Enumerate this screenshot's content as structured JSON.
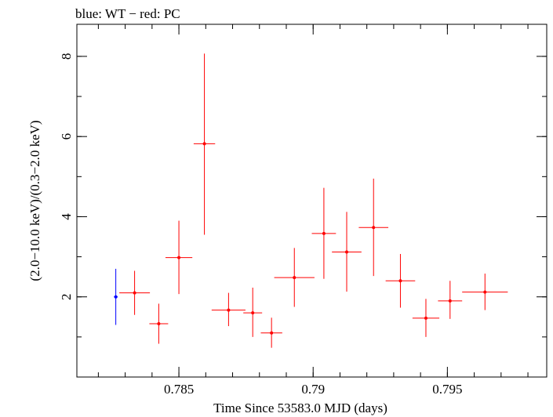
{
  "chart_data": {
    "type": "scatter",
    "title": "blue: WT − red: PC",
    "xlabel": "Time Since 53583.0 MJD (days)",
    "ylabel": "(2.0−10.0 keV)/(0.3−2.0 keV)",
    "xlim": [
      0.7812,
      0.7987
    ],
    "ylim": [
      0,
      8.8
    ],
    "x_ticks": [
      {
        "value": 0.785,
        "label": "0.785"
      },
      {
        "value": 0.79,
        "label": "0.79"
      },
      {
        "value": 0.795,
        "label": "0.795"
      }
    ],
    "x_minor_step": 0.001,
    "y_ticks": [
      {
        "value": 2,
        "label": "2"
      },
      {
        "value": 4,
        "label": "4"
      },
      {
        "value": 6,
        "label": "6"
      },
      {
        "value": 8,
        "label": "8"
      }
    ],
    "y_minor_step": 1,
    "grid": false,
    "series": [
      {
        "color": "#0000ff",
        "points": [
          {
            "x": 0.78265,
            "y": 2.0,
            "xerr": 7e-05,
            "ylo": 1.3,
            "yhi": 2.7
          }
        ]
      },
      {
        "color": "#ff0000",
        "points": [
          {
            "x": 0.78335,
            "y": 2.1,
            "xerr": 0.00057,
            "ylo": 1.55,
            "yhi": 2.65
          },
          {
            "x": 0.78425,
            "y": 1.33,
            "xerr": 0.00035,
            "ylo": 0.83,
            "yhi": 1.83
          },
          {
            "x": 0.785,
            "y": 2.98,
            "xerr": 0.0005,
            "ylo": 2.07,
            "yhi": 3.9
          },
          {
            "x": 0.78595,
            "y": 5.82,
            "xerr": 0.0004,
            "ylo": 3.55,
            "yhi": 8.07
          },
          {
            "x": 0.78685,
            "y": 1.67,
            "xerr": 0.00063,
            "ylo": 1.27,
            "yhi": 2.1
          },
          {
            "x": 0.78775,
            "y": 1.6,
            "xerr": 0.00035,
            "ylo": 1.0,
            "yhi": 2.23
          },
          {
            "x": 0.78845,
            "y": 1.1,
            "xerr": 0.0004,
            "ylo": 0.73,
            "yhi": 1.48
          },
          {
            "x": 0.7893,
            "y": 2.48,
            "xerr": 0.00075,
            "ylo": 1.75,
            "yhi": 3.22
          },
          {
            "x": 0.7904,
            "y": 3.58,
            "xerr": 0.00045,
            "ylo": 2.45,
            "yhi": 4.72
          },
          {
            "x": 0.79125,
            "y": 3.12,
            "xerr": 0.00055,
            "ylo": 2.13,
            "yhi": 4.12
          },
          {
            "x": 0.79225,
            "y": 3.73,
            "xerr": 0.00055,
            "ylo": 2.52,
            "yhi": 4.95
          },
          {
            "x": 0.79325,
            "y": 2.4,
            "xerr": 0.00055,
            "ylo": 1.73,
            "yhi": 3.07
          },
          {
            "x": 0.7942,
            "y": 1.47,
            "xerr": 0.0005,
            "ylo": 1.0,
            "yhi": 1.95
          },
          {
            "x": 0.7951,
            "y": 1.9,
            "xerr": 0.00045,
            "ylo": 1.45,
            "yhi": 2.4
          },
          {
            "x": 0.7964,
            "y": 2.12,
            "xerr": 0.00085,
            "ylo": 1.67,
            "yhi": 2.58
          }
        ]
      }
    ]
  }
}
